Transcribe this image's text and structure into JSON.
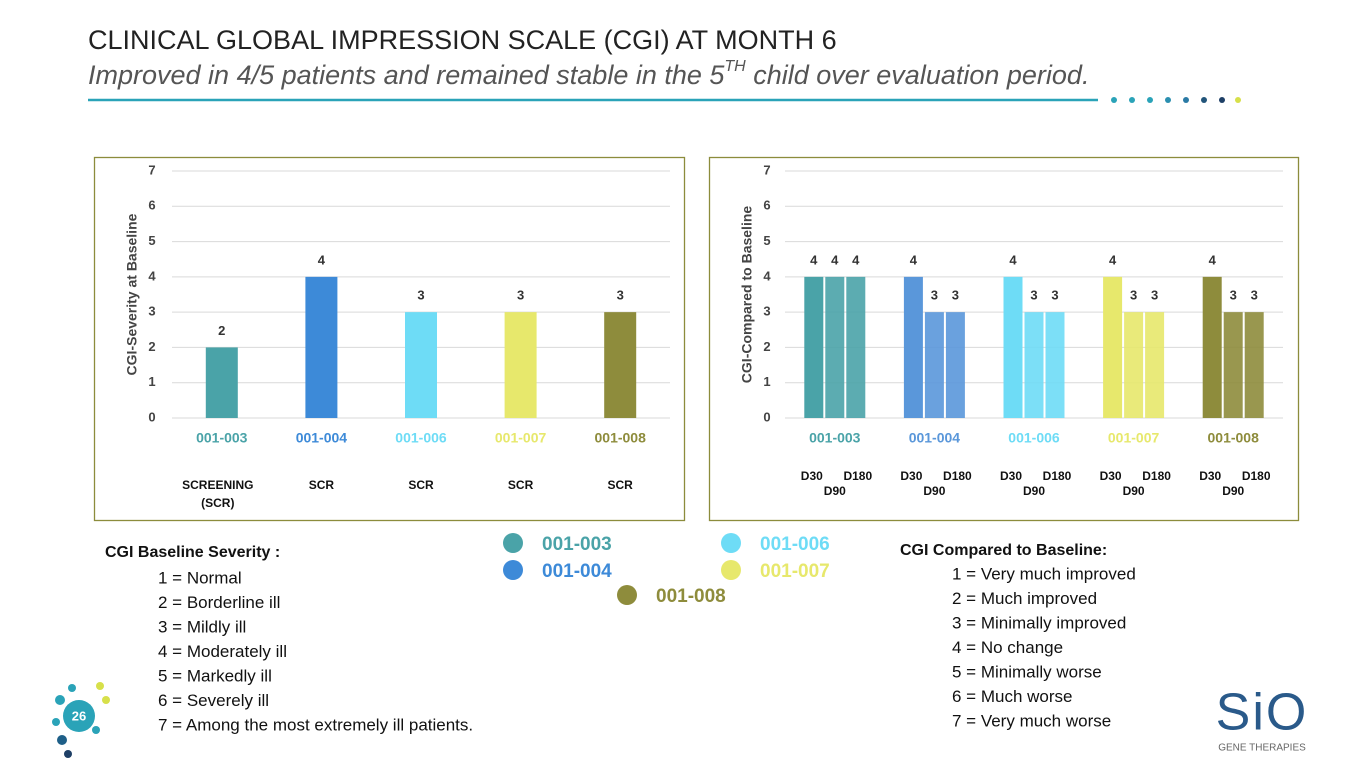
{
  "title": "CLINICAL GLOBAL IMPRESSION SCALE (CGI) AT MONTH 6",
  "subtitle": {
    "before": "Improved in 4/5 patients and remained stable in the 5",
    "sup": "TH",
    "after": " child over evaluation period."
  },
  "chart_data": [
    {
      "type": "bar",
      "ylabel": "CGI-Severity at Baseline",
      "categories": [
        "001-003",
        "001-004",
        "001-006",
        "001-007",
        "001-008"
      ],
      "colors": [
        "#4aa3a8",
        "#3d8ad8",
        "#6edcf6",
        "#e7e86c",
        "#8e8c3c"
      ],
      "values": [
        2,
        4,
        3,
        3,
        3
      ],
      "sublabels": [
        [
          "SCREENING",
          "(SCR)"
        ],
        [
          "SCR"
        ],
        [
          "SCR"
        ],
        [
          "SCR"
        ],
        [
          "SCR"
        ]
      ],
      "ylim": [
        0,
        7
      ],
      "yticks": [
        0,
        1,
        2,
        3,
        4,
        5,
        6,
        7
      ],
      "grid": true
    },
    {
      "type": "grouped_bar",
      "ylabel": "CGI-Compared to Baseline",
      "categories": [
        "001-003",
        "001-004",
        "001-006",
        "001-007",
        "001-008"
      ],
      "colors": [
        "#4aa3a8",
        "#5a97da",
        "#6edcf6",
        "#e7e86c",
        "#8e8c3c"
      ],
      "series": [
        {
          "name": "D30",
          "values": [
            4,
            4,
            4,
            4,
            4
          ]
        },
        {
          "name": "D90",
          "values": [
            4,
            3,
            3,
            3,
            3
          ]
        },
        {
          "name": "D180",
          "values": [
            4,
            3,
            3,
            3,
            3
          ]
        }
      ],
      "ylim": [
        0,
        7
      ],
      "yticks": [
        0,
        1,
        2,
        3,
        4,
        5,
        6,
        7
      ],
      "grid": true
    }
  ],
  "severity_key": {
    "heading": "CGI Baseline Severity :",
    "items": [
      "1 = Normal",
      "2 = Borderline ill",
      "3 = Mildly ill",
      "4 = Moderately ill",
      "5 = Markedly ill",
      "6 = Severely ill",
      "7 = Among the most extremely ill patients."
    ]
  },
  "compared_key": {
    "heading": "CGI Compared to Baseline:",
    "items": [
      "1 = Very much improved",
      "2 = Much improved",
      "3 = Minimally improved",
      "4 = No change",
      "5 = Minimally worse",
      "6 = Much worse",
      "7 = Very much worse"
    ]
  },
  "page_number": "26",
  "logo": {
    "name": "SiO",
    "tagline": "GENE THERAPIES"
  }
}
